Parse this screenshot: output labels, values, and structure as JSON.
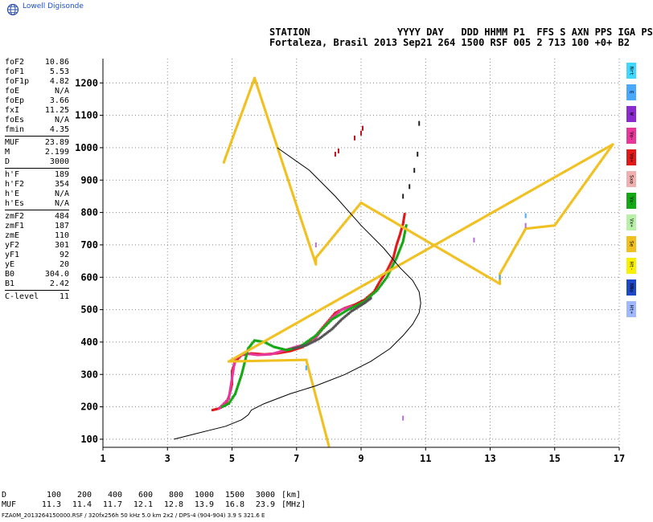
{
  "brand": {
    "name": "Lowell Digisonde",
    "icon": "globe-icon"
  },
  "header": {
    "labels": "STATION               YYYY DAY   DDD HHMM P1  FFS S AXN PPS IGA PS",
    "values": "Fortaleza, Brasil 2013 Sep21 264 1500 RSF 005 2 713 100 +0+ B2"
  },
  "params": [
    {
      "k": "foF2",
      "v": "10.86"
    },
    {
      "k": "foF1",
      "v": "5.53"
    },
    {
      "k": "foF1p",
      "v": "4.82"
    },
    {
      "k": "foE",
      "v": "N/A"
    },
    {
      "k": "foEp",
      "v": "3.66"
    },
    {
      "k": "fxI",
      "v": "11.25"
    },
    {
      "k": "foEs",
      "v": "N/A"
    },
    {
      "k": "fmin",
      "v": "4.35"
    },
    {
      "sep": true
    },
    {
      "k": "MUF",
      "v": "23.89"
    },
    {
      "k": "M",
      "v": "2.199"
    },
    {
      "k": "D",
      "v": "3000"
    },
    {
      "sep": true
    },
    {
      "k": "h'F",
      "v": "189"
    },
    {
      "k": "h'F2",
      "v": "354"
    },
    {
      "k": "h'E",
      "v": "N/A"
    },
    {
      "k": "h'Es",
      "v": "N/A"
    },
    {
      "sep": true
    },
    {
      "k": "zmF2",
      "v": "484"
    },
    {
      "k": "zmF1",
      "v": "187"
    },
    {
      "k": "zmE",
      "v": "110"
    },
    {
      "k": "yF2",
      "v": "301"
    },
    {
      "k": "yF1",
      "v": "92"
    },
    {
      "k": "yE",
      "v": "20"
    },
    {
      "k": "B0",
      "v": "304.0"
    },
    {
      "k": "B1",
      "v": "2.42"
    },
    {
      "sep": true
    },
    {
      "k": "C-level",
      "v": "11"
    }
  ],
  "legend": [
    {
      "label": "Nrt",
      "color": "#40d8ff"
    },
    {
      "label": "E",
      "color": "#4aa8ff"
    },
    {
      "label": "W",
      "color": "#8a2bd0"
    },
    {
      "label": "Vo-",
      "color": "#e8379a"
    },
    {
      "label": "Vo+",
      "color": "#e01818"
    },
    {
      "label": "Sxo",
      "color": "#f0b0b0"
    },
    {
      "label": "Vx-",
      "color": "#14a814"
    },
    {
      "label": "Vx+",
      "color": "#b8f0a8"
    },
    {
      "label": "Se",
      "color": "#f0c020"
    },
    {
      "label": "Ht-",
      "color": "#f8f000"
    },
    {
      "label": "NNo",
      "color": "#1e48c8"
    },
    {
      "label": "Ht+",
      "color": "#a0b8ff"
    }
  ],
  "muf_table": {
    "d_label": "D",
    "muf_label": "MUF",
    "d_values": [
      "100",
      "200",
      "400",
      "600",
      "800",
      "1000",
      "1500",
      "3000"
    ],
    "muf_values": [
      "11.3",
      "11.4",
      "11.7",
      "12.1",
      "12.8",
      "13.9",
      "16.8",
      "23.9"
    ],
    "d_unit": "[km]",
    "muf_unit": "[MHz]"
  },
  "footer": "FZA0M_2013264150000.RSF / 320fx256h 50 kHz 5.0 km 2x2 / DPS-4 (904-904)  3.9 S 321.6 E",
  "chart_data": {
    "type": "scatter",
    "x_ticks": [
      1,
      3,
      5,
      7,
      9,
      11,
      13,
      15,
      17
    ],
    "y_ticks": [
      100,
      200,
      300,
      400,
      500,
      600,
      700,
      800,
      900,
      1000,
      1100,
      1200
    ],
    "xlim": [
      1,
      17
    ],
    "ylim": [
      75,
      1275
    ],
    "grid": true,
    "grid_style": "dotted",
    "profile": {
      "color": "#000000",
      "x": [
        3.2,
        3.6,
        4.2,
        4.8,
        5.3,
        5.5,
        5.6,
        6.0,
        6.8,
        7.6,
        8.5,
        9.3,
        9.9,
        10.3,
        10.6,
        10.8,
        10.85,
        10.8,
        10.6,
        10.2,
        9.7,
        9.0,
        8.2,
        7.4,
        6.4
      ],
      "y": [
        100,
        110,
        125,
        140,
        160,
        175,
        190,
        210,
        240,
        265,
        300,
        340,
        380,
        420,
        455,
        490,
        520,
        555,
        590,
        630,
        690,
        760,
        850,
        930,
        1000
      ]
    },
    "traces": [
      {
        "name": "O-trace",
        "color": "#e01818",
        "x": [
          4.4,
          4.6,
          4.8,
          4.9,
          5.0,
          5.0,
          5.1,
          5.3,
          5.6,
          6.0,
          6.4,
          6.8,
          7.2,
          7.6,
          7.9,
          8.2,
          8.5,
          8.8,
          9.1,
          9.4,
          9.6,
          9.8,
          10.0,
          10.1,
          10.2,
          10.3,
          10.35
        ],
        "y": [
          190,
          195,
          205,
          230,
          270,
          310,
          340,
          360,
          365,
          362,
          365,
          372,
          385,
          420,
          455,
          490,
          505,
          515,
          530,
          555,
          590,
          620,
          660,
          700,
          730,
          765,
          795
        ]
      },
      {
        "name": "O-trace-2",
        "color": "#e8379a",
        "x": [
          4.6,
          4.9,
          5.1,
          5.4,
          5.8,
          6.2,
          7.5,
          7.8,
          8.1,
          8.4,
          8.7
        ],
        "y": [
          195,
          225,
          350,
          365,
          360,
          362,
          400,
          440,
          475,
          500,
          510
        ]
      },
      {
        "name": "X-trace",
        "color": "#14a814",
        "x": [
          4.7,
          4.9,
          5.1,
          5.3,
          5.5,
          5.7,
          6.0,
          6.3,
          6.7,
          7.1,
          7.6,
          8.1,
          8.6,
          9.1,
          9.5,
          9.8,
          10.1,
          10.3,
          10.4
        ],
        "y": [
          200,
          210,
          240,
          300,
          380,
          405,
          400,
          385,
          375,
          385,
          420,
          470,
          500,
          525,
          560,
          600,
          660,
          710,
          760
        ]
      },
      {
        "name": "trace-dark",
        "color": "#555555",
        "x": [
          6.9,
          7.3,
          7.7,
          8.1,
          8.4,
          8.7,
          9.1,
          9.3
        ],
        "y": [
          380,
          390,
          410,
          440,
          470,
          495,
          520,
          535
        ]
      },
      {
        "name": "outliers-top",
        "color": "#c01020",
        "x": [
          8.2,
          8.3,
          8.8,
          9.0,
          9.05
        ],
        "y": [
          980,
          990,
          1030,
          1045,
          1060
        ]
      },
      {
        "name": "scatter-high",
        "color": "#222222",
        "x": [
          10.3,
          10.5,
          10.65,
          10.75,
          10.8
        ],
        "y": [
          850,
          880,
          930,
          980,
          1075
        ]
      },
      {
        "name": "noise-yellow",
        "color": "#f0c020",
        "x": [
          4.75,
          4.8,
          5.7,
          7.6,
          7.6,
          9.0,
          13.3,
          13.3,
          14.1,
          15.0,
          16.8,
          4.9,
          7.3,
          8.0
        ],
        "y": [
          955,
          970,
          1215,
          640,
          660,
          830,
          580,
          610,
          750,
          760,
          1010,
          340,
          345,
          80
        ]
      },
      {
        "name": "noise-purple",
        "color": "#b070d0",
        "x": [
          7.6,
          12.5,
          14.1,
          10.3
        ],
        "y": [
          700,
          715,
          760,
          165
        ]
      },
      {
        "name": "noise-blue",
        "color": "#4aa8ff",
        "x": [
          14.1,
          7.3,
          13.3
        ],
        "y": [
          790,
          320,
          600
        ]
      }
    ]
  }
}
